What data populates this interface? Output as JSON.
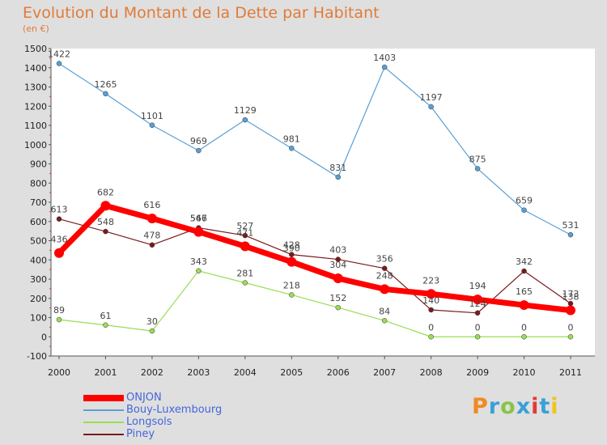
{
  "colors": {
    "onjon": "#ff0000",
    "bouy": "#5a9fd4",
    "longsols": "#99dd55",
    "piney": "#7a1a1a",
    "title": "#e07b39",
    "legend_text": "#4466dd"
  },
  "logo": {
    "text": "Proxiti"
  },
  "chart_data": {
    "type": "line",
    "title": "Evolution du Montant de la Dette par Habitant",
    "subtitle": "(en €)",
    "xlabel": "",
    "ylabel": "",
    "ylim": [
      -100,
      1500
    ],
    "yticks": [
      -100,
      0,
      100,
      200,
      300,
      400,
      500,
      600,
      700,
      800,
      900,
      1000,
      1100,
      1200,
      1300,
      1400,
      1500
    ],
    "grid": false,
    "legend_position": "bottom-left",
    "x": [
      "2000",
      "2001",
      "2002",
      "2003",
      "2004",
      "2005",
      "2006",
      "2007",
      "2008",
      "2009",
      "2010",
      "2011"
    ],
    "series": [
      {
        "name": "Bouy-Luxembourg",
        "key": "bouy",
        "values": [
          1422,
          1265,
          1101,
          969,
          1129,
          981,
          831,
          1403,
          1197,
          875,
          659,
          531
        ]
      },
      {
        "name": "Longsols",
        "key": "longsols",
        "values": [
          89,
          61,
          30,
          343,
          281,
          218,
          152,
          84,
          0,
          0,
          0,
          0
        ]
      },
      {
        "name": "Piney",
        "key": "piney",
        "values": [
          613,
          548,
          478,
          567,
          527,
          428,
          403,
          356,
          140,
          124,
          342,
          173
        ]
      },
      {
        "name": "ONJON",
        "key": "onjon",
        "values": [
          436,
          682,
          616,
          546,
          471,
          390,
          304,
          248,
          223,
          194,
          165,
          138
        ]
      }
    ],
    "legend_order": [
      "ONJON",
      "Bouy-Luxembourg",
      "Longsols",
      "Piney"
    ]
  }
}
